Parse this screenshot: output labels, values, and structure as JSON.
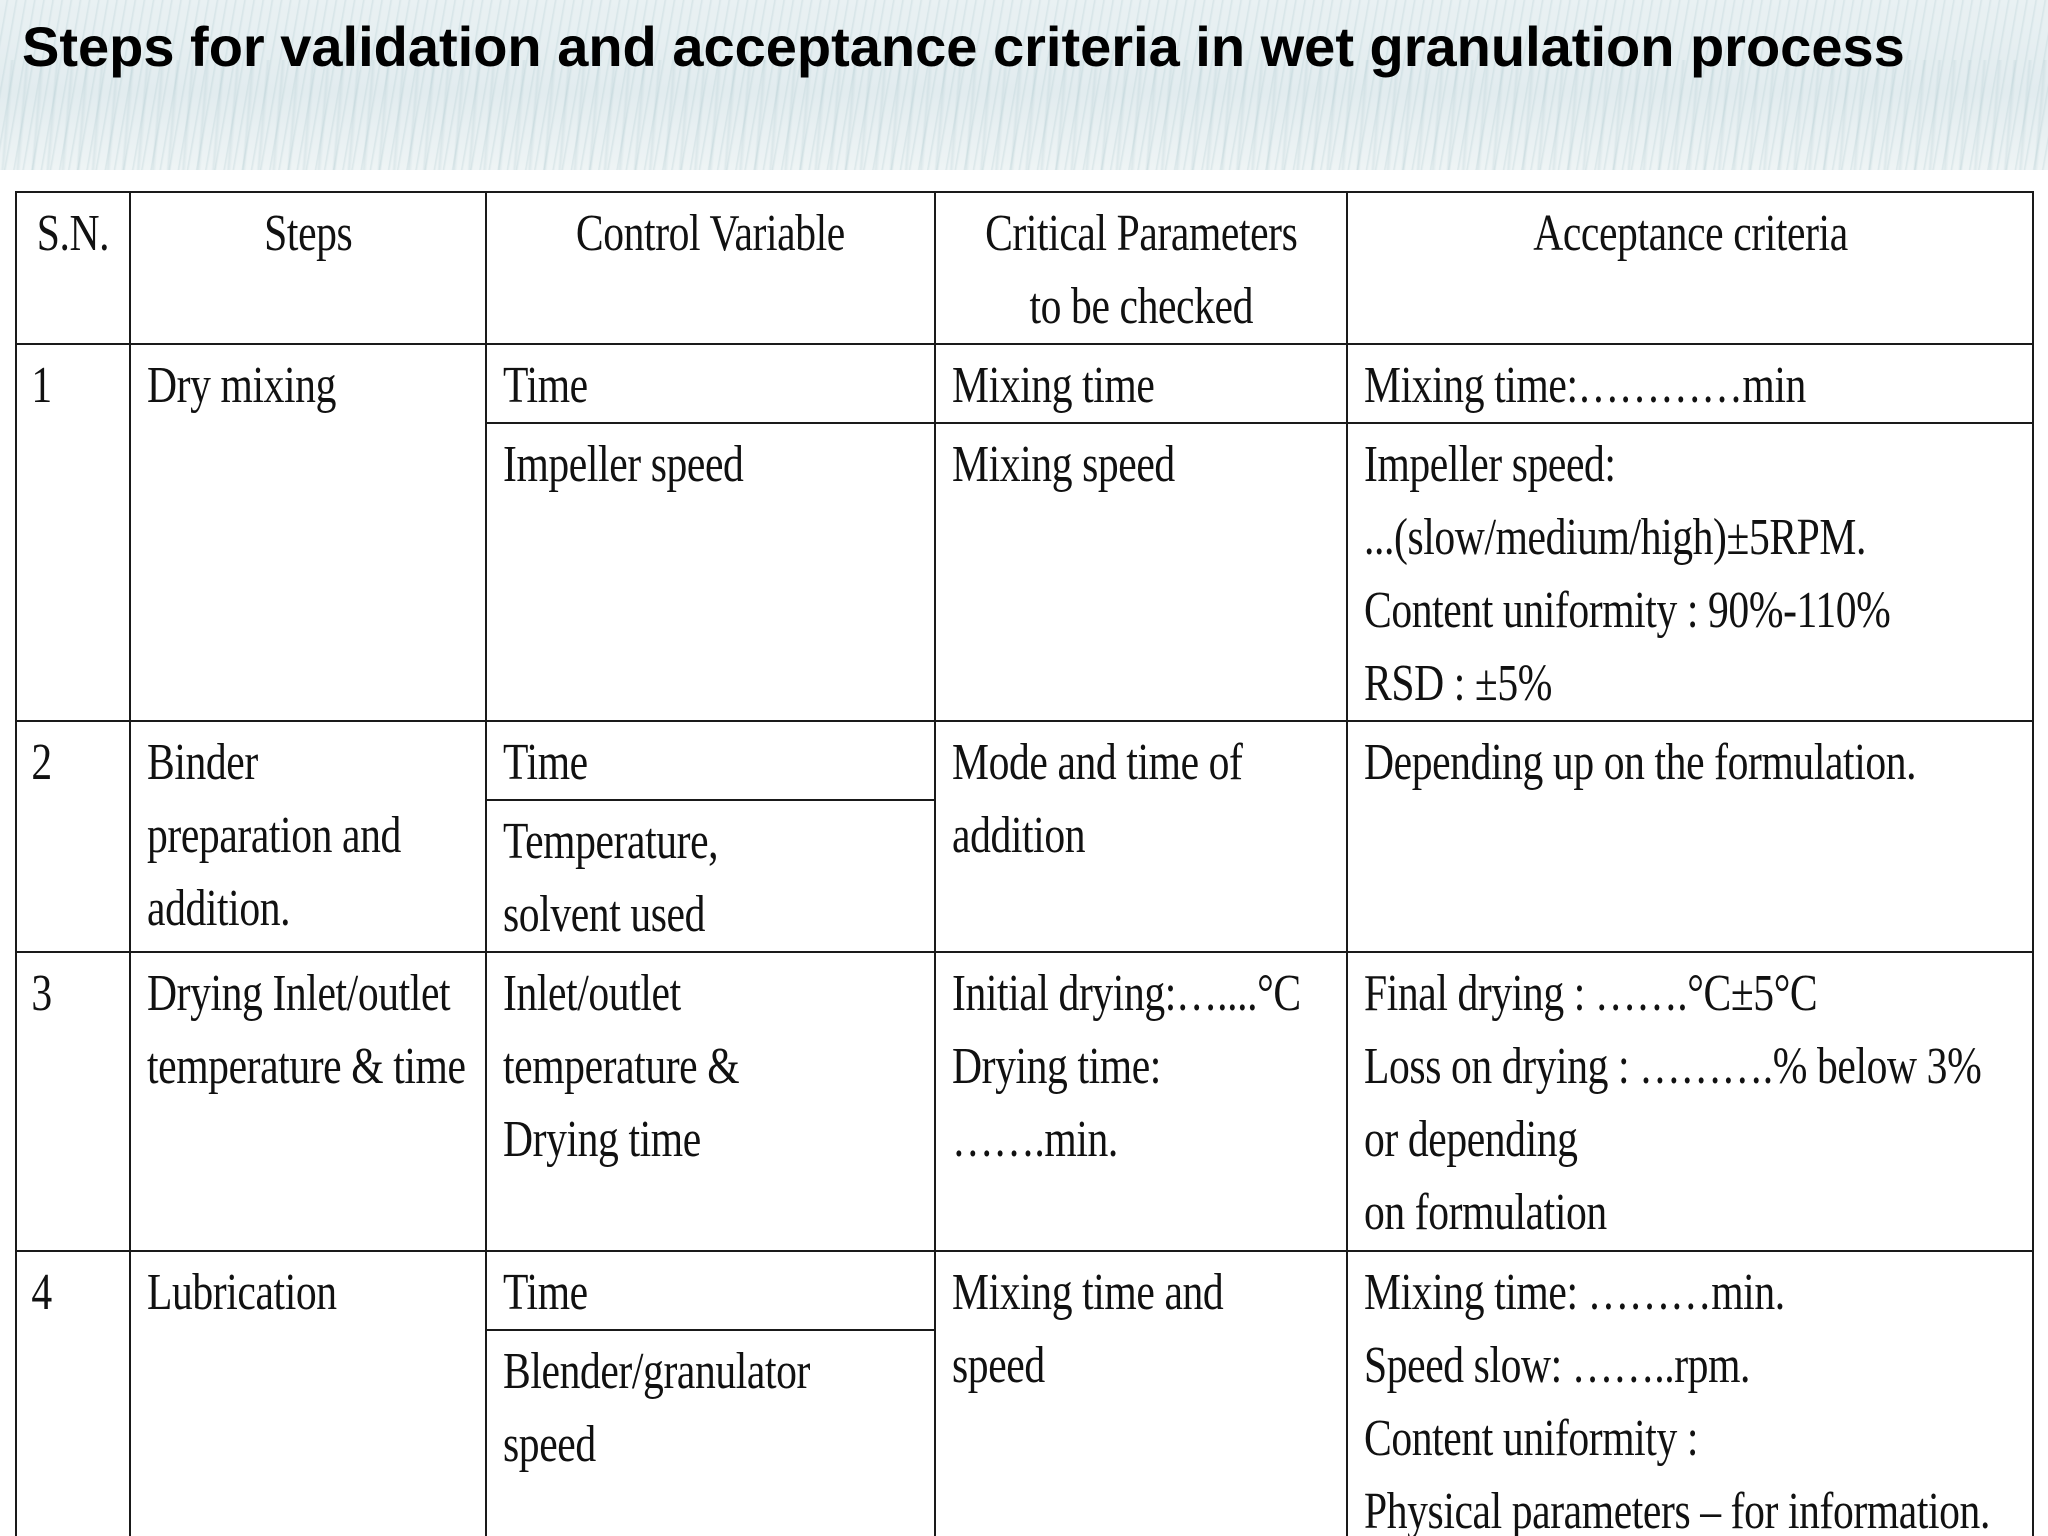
{
  "title": "Steps for validation and acceptance criteria in wet granulation process",
  "table": {
    "headers": {
      "sn": "S.N.",
      "steps": "Steps",
      "control": "Control Variable",
      "critical_l1": "Critical Parameters",
      "critical_l2": "to be checked",
      "acceptance": "Acceptance criteria"
    },
    "rows": [
      {
        "sn": "1",
        "step": [
          "Dry mixing"
        ],
        "control": [
          [
            "Time"
          ],
          [
            "Impeller speed"
          ]
        ],
        "critical": [
          [
            "Mixing time"
          ],
          [
            "Mixing speed"
          ]
        ],
        "acceptance": [
          [
            "Mixing time:…………min"
          ],
          [
            "Impeller speed:",
            "...(slow/medium/high)±5RPM.",
            "Content uniformity : 90%-110%",
            "RSD : ±5%"
          ]
        ]
      },
      {
        "sn": "2",
        "step": [
          "Binder",
          "preparation and",
          "addition."
        ],
        "control": [
          [
            "Time"
          ],
          [
            "Temperature,",
            "solvent used"
          ]
        ],
        "critical": [
          "Mode and time of",
          "addition"
        ],
        "acceptance": [
          "Depending up on the formulation."
        ]
      },
      {
        "sn": "3",
        "step": [
          "Drying Inlet/outlet",
          "temperature & time"
        ],
        "control": [
          "Inlet/outlet",
          "temperature &",
          "Drying time"
        ],
        "critical": [
          "Initial drying:…....°C",
          "Drying time:",
          "…….min."
        ],
        "acceptance": [
          "Final drying : …….°C±5°C",
          "Loss on drying : ……….% below 3%",
          "or depending",
          "on formulation"
        ]
      },
      {
        "sn": "4",
        "step": [
          "Lubrication"
        ],
        "control": [
          [
            "Time"
          ],
          [
            "Blender/granulator",
            "speed"
          ]
        ],
        "critical": [
          "Mixing time and",
          "speed"
        ],
        "acceptance": [
          "Mixing time: ………min.",
          "Speed slow: ……..rpm.",
          "Content uniformity :",
          "Physical parameters – for information."
        ]
      }
    ]
  }
}
